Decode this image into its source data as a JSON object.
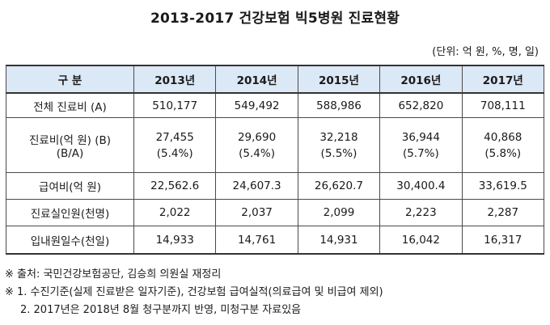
{
  "title": "2013-2017 건강보험 빅5병원 진료현황",
  "unit_note": "(단위: 억 원, %, 명, 일)",
  "table": {
    "headers": [
      "구 분",
      "2013년",
      "2014년",
      "2015년",
      "2016년",
      "2017년"
    ],
    "rows": [
      {
        "label": "전체 진료비 (A)",
        "values": [
          "510,177",
          "549,492",
          "588,986",
          "652,820",
          "708,111"
        ]
      },
      {
        "label": "진료비(억 원) (B)",
        "label2": "(B/A)",
        "values": [
          "27,455",
          "29,690",
          "32,218",
          "36,944",
          "40,868"
        ],
        "pcts": [
          "(5.4%)",
          "(5.4%)",
          "(5.5%)",
          "(5.7%)",
          "(5.8%)"
        ]
      },
      {
        "label": "급여비(억 원)",
        "values": [
          "22,562.6",
          "24,607.3",
          "26,620.7",
          "30,400.4",
          "33,619.5"
        ]
      },
      {
        "label": "진료실인원(천명)",
        "values": [
          "2,022",
          "2,037",
          "2,099",
          "2,223",
          "2,287"
        ]
      },
      {
        "label": "입내원일수(천일)",
        "values": [
          "14,933",
          "14,761",
          "14,931",
          "16,042",
          "16,317"
        ]
      }
    ]
  },
  "notes": {
    "source": "※ 출처: 국민건강보험공단, 김승희 의원실 재정리",
    "note1": "※ 1. 수진기준(실제 진료받은 일자기준), 건강보험 급여실적(의료급여 및 비급여 제외)",
    "note2": "2. 2017년은 2018년 8월 청구분까지 반영, 미청구분 자료있음"
  }
}
